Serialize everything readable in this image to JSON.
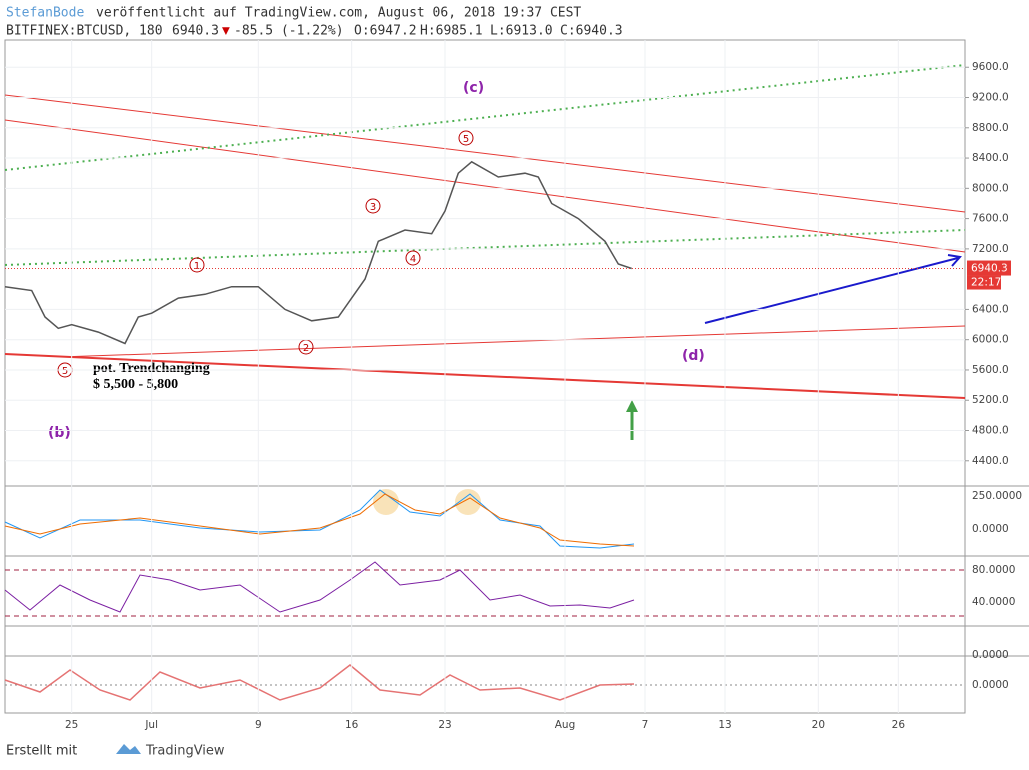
{
  "header": {
    "author": "StefanBode",
    "published": "veröffentlicht auf TradingView.com, August 06, 2018 19:37 CEST",
    "symbol": "BITFINEX:BTCUSD, 180",
    "price": "6940.3",
    "change": "-85.5 (-1.22%)",
    "open": "O:6947.2",
    "high": "H:6985.1",
    "low": "L:6913.0",
    "close": "C:6940.3"
  },
  "chart_data": {
    "type": "line",
    "color": "#555555",
    "x": [
      "2018-06-20",
      "2018-06-22",
      "2018-06-23",
      "2018-06-24",
      "2018-06-25",
      "2018-06-27",
      "2018-06-29",
      "2018-06-30",
      "2018-07-01",
      "2018-07-03",
      "2018-07-05",
      "2018-07-07",
      "2018-07-09",
      "2018-07-11",
      "2018-07-13",
      "2018-07-15",
      "2018-07-17",
      "2018-07-18",
      "2018-07-20",
      "2018-07-22",
      "2018-07-23",
      "2018-07-24",
      "2018-07-25",
      "2018-07-27",
      "2018-07-29",
      "2018-07-30",
      "2018-07-31",
      "2018-08-02",
      "2018-08-04",
      "2018-08-05",
      "2018-08-06"
    ],
    "values": [
      6700,
      6650,
      6300,
      6150,
      6200,
      6100,
      5950,
      6300,
      6350,
      6550,
      6600,
      6700,
      6700,
      6400,
      6250,
      6300,
      6800,
      7300,
      7450,
      7400,
      7700,
      8200,
      8350,
      8150,
      8200,
      8150,
      7800,
      7600,
      7300,
      7000,
      6940.3
    ],
    "xlim": [
      "2018-06-20",
      "2018-08-31"
    ],
    "xticks": [
      {
        "value": "2018-06-25",
        "label": "25"
      },
      {
        "value": "2018-07-01",
        "label": "Jul"
      },
      {
        "value": "2018-07-09",
        "label": "9"
      },
      {
        "value": "2018-07-16",
        "label": "16"
      },
      {
        "value": "2018-07-23",
        "label": "23"
      },
      {
        "value": "2018-08-01",
        "label": "Aug"
      },
      {
        "value": "2018-08-07",
        "label": "7"
      },
      {
        "value": "2018-08-13",
        "label": "13"
      },
      {
        "value": "2018-08-20",
        "label": "20"
      },
      {
        "value": "2018-08-26",
        "label": "26"
      }
    ],
    "ylim": [
      4080,
      9960
    ],
    "yticks": [
      {
        "value": 9600,
        "label": "9600.0"
      },
      {
        "value": 9200,
        "label": "9200.0"
      },
      {
        "value": 8800,
        "label": "8800.0"
      },
      {
        "value": 8400,
        "label": "8400.0"
      },
      {
        "value": 8000,
        "label": "8000.0"
      },
      {
        "value": 7600,
        "label": "7600.0"
      },
      {
        "value": 7200,
        "label": "7200.0"
      },
      {
        "value": 6400,
        "label": "6400.0"
      },
      {
        "value": 6000,
        "label": "6000.0"
      },
      {
        "value": 5600,
        "label": "5600.0"
      },
      {
        "value": 5200,
        "label": "5200.0"
      },
      {
        "value": 4800,
        "label": "4800.0"
      },
      {
        "value": 4400,
        "label": "4400.0"
      }
    ],
    "last_price": 6940.3,
    "countdown": "22:17",
    "annotations": {
      "c": "(c)",
      "b": "(b)",
      "d": "(d)",
      "w1": "1",
      "w2": "2",
      "w3": "3",
      "w4": "4",
      "w5": "5",
      "w5b": "5",
      "note1": "pot. Trendchanging",
      "note2": "$ 5,500 - 5,800"
    }
  },
  "panels": [
    {
      "labels": [
        "250.0000",
        "0.0000"
      ]
    },
    {
      "labels": [
        "80.0000",
        "40.0000"
      ]
    },
    {
      "labels": [
        "0.0000"
      ]
    },
    {
      "labels": [
        "0.0000"
      ]
    }
  ],
  "footer": {
    "made_with": "Erstellt mit",
    "brand": "TradingView"
  }
}
